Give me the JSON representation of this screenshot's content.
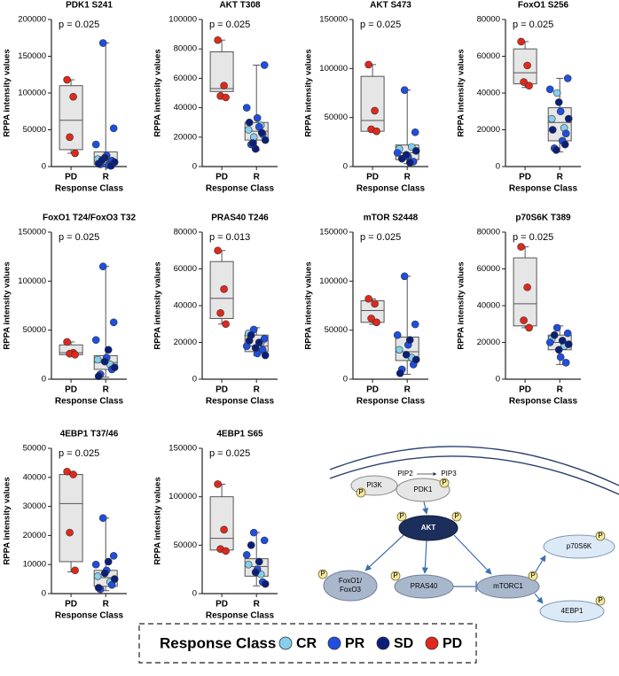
{
  "chart_data": [
    {
      "type": "box",
      "title": "PDK1 S241",
      "annotation": "p = 0.025",
      "ylabel": "RPPA intensity values",
      "xlabel": "Response Class",
      "categories": [
        "PD",
        "R"
      ],
      "ylim": [
        0,
        200000
      ],
      "yticks": [
        0,
        50000,
        100000,
        150000,
        200000
      ],
      "boxes": [
        {
          "min": 18000,
          "q1": 23000,
          "median": 63000,
          "q3": 110000,
          "max": 118000
        },
        {
          "min": 1000,
          "q1": 3000,
          "median": 8000,
          "q3": 20000,
          "max": 168000
        }
      ],
      "series": [
        {
          "name": "CR",
          "color": "#87ceeb",
          "values": [
            10000,
            5000
          ]
        },
        {
          "name": "PR",
          "color": "#1f4fe0",
          "values": [
            168000,
            52000,
            30000,
            15000,
            8000,
            3000,
            2000
          ]
        },
        {
          "name": "SD",
          "color": "#0a1f7a",
          "values": [
            12000,
            6000,
            4000,
            1000,
            9000
          ]
        },
        {
          "name": "PD",
          "color": "#e0281c",
          "values": [
            118000,
            95000,
            40000,
            18000
          ]
        }
      ]
    },
    {
      "type": "box",
      "title": "AKT T308",
      "annotation": "p = 0.025",
      "ylabel": "RPPA intensity values",
      "xlabel": "Response Class",
      "categories": [
        "PD",
        "R"
      ],
      "ylim": [
        0,
        100000
      ],
      "yticks": [
        0,
        20000,
        40000,
        60000,
        80000,
        100000
      ],
      "boxes": [
        {
          "min": 46000,
          "q1": 51000,
          "median": 53000,
          "q3": 78000,
          "max": 86000
        },
        {
          "min": 11000,
          "q1": 18000,
          "median": 24000,
          "q3": 30000,
          "max": 69000
        }
      ],
      "series": [
        {
          "name": "CR",
          "color": "#87ceeb",
          "values": [
            25000,
            28000,
            20000
          ]
        },
        {
          "name": "PR",
          "color": "#1f4fe0",
          "values": [
            69000,
            40000,
            33000,
            22000,
            15000,
            27000
          ]
        },
        {
          "name": "SD",
          "color": "#0a1f7a",
          "values": [
            12000,
            18000,
            30000,
            23000,
            16000
          ]
        },
        {
          "name": "PD",
          "color": "#e0281c",
          "values": [
            86000,
            55000,
            48000,
            47000
          ]
        }
      ]
    },
    {
      "type": "box",
      "title": "AKT S473",
      "annotation": "p = 0.025",
      "ylabel": "RPPA intensity values",
      "xlabel": "Response Class",
      "categories": [
        "PD",
        "R"
      ],
      "ylim": [
        0,
        150000
      ],
      "yticks": [
        0,
        50000,
        100000,
        150000
      ],
      "boxes": [
        {
          "min": 35000,
          "q1": 36000,
          "median": 47000,
          "q3": 92000,
          "max": 104000
        },
        {
          "min": 3000,
          "q1": 7000,
          "median": 14000,
          "q3": 22000,
          "max": 78000
        }
      ],
      "series": [
        {
          "name": "CR",
          "color": "#87ceeb",
          "values": [
            18000,
            20000
          ]
        },
        {
          "name": "PR",
          "color": "#1f4fe0",
          "values": [
            78000,
            35000,
            14000,
            10000,
            5000
          ]
        },
        {
          "name": "SD",
          "color": "#0a1f7a",
          "values": [
            8000,
            4000,
            12000,
            16000
          ]
        },
        {
          "name": "PD",
          "color": "#e0281c",
          "values": [
            104000,
            57000,
            38000,
            36000
          ]
        }
      ]
    },
    {
      "type": "box",
      "title": "FoxO1 S256",
      "annotation": "p = 0.025",
      "ylabel": "RPPA intensity values",
      "xlabel": "Response Class",
      "categories": [
        "PD",
        "R"
      ],
      "ylim": [
        0,
        80000
      ],
      "yticks": [
        0,
        20000,
        40000,
        60000,
        80000
      ],
      "boxes": [
        {
          "min": 43000,
          "q1": 45000,
          "median": 51000,
          "q3": 64000,
          "max": 68000
        },
        {
          "min": 8000,
          "q1": 14000,
          "median": 24000,
          "q3": 32000,
          "max": 48000
        }
      ],
      "series": [
        {
          "name": "CR",
          "color": "#87ceeb",
          "values": [
            26000,
            21000,
            40000
          ]
        },
        {
          "name": "PR",
          "color": "#1f4fe0",
          "values": [
            48000,
            42000,
            30000,
            18000,
            10000,
            14000
          ]
        },
        {
          "name": "SD",
          "color": "#0a1f7a",
          "values": [
            35000,
            26000,
            20000,
            12000,
            9000
          ]
        },
        {
          "name": "PD",
          "color": "#e0281c",
          "values": [
            68000,
            55000,
            46000,
            44000
          ]
        }
      ]
    },
    {
      "type": "box",
      "title": "FoxO1 T24/FoxO3 T32",
      "annotation": "p = 0.025",
      "ylabel": "RPPA intensity values",
      "xlabel": "Response Class",
      "categories": [
        "PD",
        "R"
      ],
      "ylim": [
        0,
        150000
      ],
      "yticks": [
        0,
        50000,
        100000,
        150000
      ],
      "boxes": [
        {
          "min": 24000,
          "q1": 25000,
          "median": 27000,
          "q3": 35000,
          "max": 38000
        },
        {
          "min": 2000,
          "q1": 10000,
          "median": 17000,
          "q3": 24000,
          "max": 115000
        }
      ],
      "series": [
        {
          "name": "CR",
          "color": "#87ceeb",
          "values": [
            20000,
            15000
          ]
        },
        {
          "name": "PR",
          "color": "#1f4fe0",
          "values": [
            115000,
            58000,
            40000,
            22000,
            10000,
            5000
          ]
        },
        {
          "name": "SD",
          "color": "#0a1f7a",
          "values": [
            30000,
            18000,
            12000,
            3000
          ]
        },
        {
          "name": "PD",
          "color": "#e0281c",
          "values": [
            38000,
            27000,
            26000,
            25000
          ]
        }
      ]
    },
    {
      "type": "box",
      "title": "PRAS40 T246",
      "annotation": "p = 0.013",
      "ylabel": "RPPA intensity values",
      "xlabel": "Response Class",
      "categories": [
        "PD",
        "R"
      ],
      "ylim": [
        0,
        80000
      ],
      "yticks": [
        0,
        20000,
        40000,
        60000,
        80000
      ],
      "boxes": [
        {
          "min": 30000,
          "q1": 33000,
          "median": 44000,
          "q3": 64000,
          "max": 70000
        },
        {
          "min": 13000,
          "q1": 15000,
          "median": 18000,
          "q3": 24000,
          "max": 28000
        }
      ],
      "series": [
        {
          "name": "CR",
          "color": "#87ceeb",
          "values": [
            25000,
            20000
          ]
        },
        {
          "name": "PR",
          "color": "#1f4fe0",
          "values": [
            27000,
            22000,
            18000,
            14000,
            16000
          ]
        },
        {
          "name": "SD",
          "color": "#0a1f7a",
          "values": [
            24000,
            20000,
            17000,
            13000,
            21000
          ]
        },
        {
          "name": "PD",
          "color": "#e0281c",
          "values": [
            70000,
            49000,
            36000,
            30000
          ]
        }
      ]
    },
    {
      "type": "box",
      "title": "mTOR S2448",
      "annotation": "p = 0.025",
      "ylabel": "RPPA intensity values",
      "xlabel": "Response Class",
      "categories": [
        "PD",
        "R"
      ],
      "ylim": [
        0,
        150000
      ],
      "yticks": [
        0,
        50000,
        100000,
        150000
      ],
      "boxes": [
        {
          "min": 56000,
          "q1": 58000,
          "median": 70000,
          "q3": 80000,
          "max": 82000
        },
        {
          "min": 5000,
          "q1": 19000,
          "median": 28000,
          "q3": 43000,
          "max": 105000
        }
      ],
      "series": [
        {
          "name": "CR",
          "color": "#87ceeb",
          "values": [
            30000,
            22000
          ]
        },
        {
          "name": "PR",
          "color": "#1f4fe0",
          "values": [
            105000,
            56000,
            45000,
            35000,
            15000,
            10000
          ]
        },
        {
          "name": "SD",
          "color": "#0a1f7a",
          "values": [
            40000,
            25000,
            20000,
            6000
          ]
        },
        {
          "name": "PD",
          "color": "#e0281c",
          "values": [
            82000,
            77000,
            62000,
            58000
          ]
        }
      ]
    },
    {
      "type": "box",
      "title": "p70S6K T389",
      "annotation": "p = 0.025",
      "ylabel": "RPPA intensity values",
      "xlabel": "Response Class",
      "categories": [
        "PD",
        "R"
      ],
      "ylim": [
        0,
        80000
      ],
      "yticks": [
        0,
        20000,
        40000,
        60000,
        80000
      ],
      "boxes": [
        {
          "min": 28000,
          "q1": 29000,
          "median": 41000,
          "q3": 66000,
          "max": 72000
        },
        {
          "min": 8000,
          "q1": 16000,
          "median": 20000,
          "q3": 24000,
          "max": 29000
        }
      ],
      "series": [
        {
          "name": "CR",
          "color": "#87ceeb",
          "values": [
            22000,
            18000
          ]
        },
        {
          "name": "PR",
          "color": "#1f4fe0",
          "values": [
            28000,
            25000,
            20000,
            12000,
            9000
          ]
        },
        {
          "name": "SD",
          "color": "#0a1f7a",
          "values": [
            24000,
            21000,
            16000,
            19000
          ]
        },
        {
          "name": "PD",
          "color": "#e0281c",
          "values": [
            72000,
            50000,
            32000,
            28000
          ]
        }
      ]
    },
    {
      "type": "box",
      "title": "4EBP1 T37/46",
      "annotation": "p = 0.025",
      "ylabel": "RPPA intensity values",
      "xlabel": "Response Class",
      "categories": [
        "PD",
        "R"
      ],
      "ylim": [
        0,
        50000
      ],
      "yticks": [
        0,
        10000,
        20000,
        30000,
        40000,
        50000
      ],
      "boxes": [
        {
          "min": 7500,
          "q1": 11000,
          "median": 31000,
          "q3": 41000,
          "max": 42000
        },
        {
          "min": 1000,
          "q1": 2500,
          "median": 5500,
          "q3": 8000,
          "max": 26000
        }
      ],
      "series": [
        {
          "name": "CR",
          "color": "#87ceeb",
          "values": [
            6000,
            4000
          ]
        },
        {
          "name": "PR",
          "color": "#1f4fe0",
          "values": [
            26000,
            13000,
            10000,
            8000,
            3000,
            1500
          ]
        },
        {
          "name": "SD",
          "color": "#0a1f7a",
          "values": [
            11000,
            7000,
            5000,
            2000
          ]
        },
        {
          "name": "PD",
          "color": "#e0281c",
          "values": [
            42000,
            41000,
            21000,
            8000
          ]
        }
      ]
    },
    {
      "type": "box",
      "title": "4EBP1 S65",
      "annotation": "p = 0.025",
      "ylabel": "RPPA intensity values",
      "xlabel": "Response Class",
      "categories": [
        "PD",
        "R"
      ],
      "ylim": [
        0,
        150000
      ],
      "yticks": [
        0,
        50000,
        100000,
        150000
      ],
      "boxes": [
        {
          "min": 44000,
          "q1": 45000,
          "median": 57000,
          "q3": 100000,
          "max": 113000
        },
        {
          "min": 8000,
          "q1": 18000,
          "median": 28000,
          "q3": 36000,
          "max": 63000
        }
      ],
      "series": [
        {
          "name": "CR",
          "color": "#87ceeb",
          "values": [
            30000,
            20000
          ]
        },
        {
          "name": "PR",
          "color": "#1f4fe0",
          "values": [
            63000,
            55000,
            40000,
            25000,
            12000
          ]
        },
        {
          "name": "SD",
          "color": "#0a1f7a",
          "values": [
            50000,
            33000,
            22000,
            10000
          ]
        },
        {
          "name": "PD",
          "color": "#e0281c",
          "values": [
            113000,
            66000,
            46000,
            44000
          ]
        }
      ]
    }
  ],
  "legend_title": "Response Class",
  "diagram": {
    "pip2": "PIP2",
    "pip3": "PIP3",
    "phospho": "P",
    "pi3k": "PI3K",
    "pdk1": "PDK1",
    "akt": "AKT",
    "foxo": [
      "FoxO1/",
      "FoxO3"
    ],
    "pras40": "PRAS40",
    "mtorc1": "mTORC1",
    "p70s6k": "p70S6K",
    "eif": "4EBP1"
  }
}
